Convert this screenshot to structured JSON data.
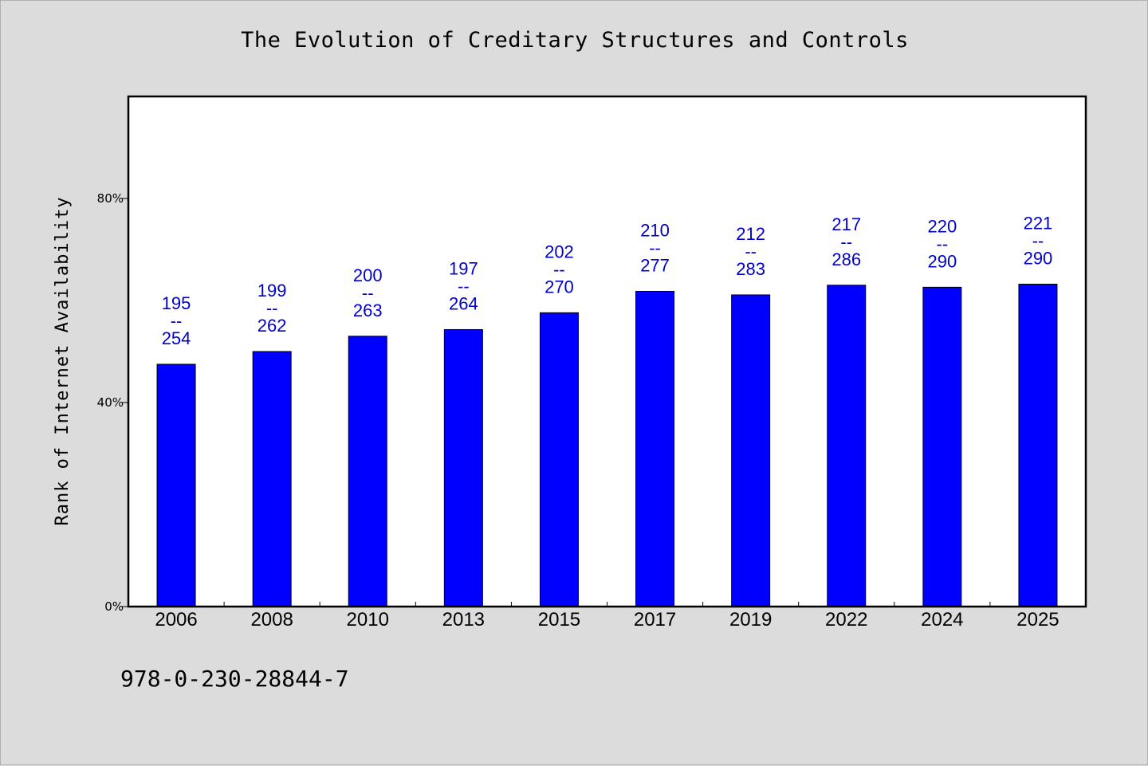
{
  "chart_data": {
    "type": "bar",
    "title": "The Evolution of Creditary Structures and Controls",
    "xlabel": "",
    "ylabel": "Rank of Internet Availability",
    "ylim": [
      0,
      100
    ],
    "yticks": [
      0,
      40,
      80
    ],
    "ytick_labels": [
      "0%",
      "40%",
      "80%"
    ],
    "grid": false,
    "categories": [
      "2006",
      "2008",
      "2010",
      "2013",
      "2015",
      "2017",
      "2019",
      "2022",
      "2024",
      "2025"
    ],
    "values": [
      47.5,
      50.0,
      53.0,
      54.3,
      57.6,
      61.8,
      61.1,
      63.0,
      62.6,
      63.2
    ],
    "bar_labels": [
      {
        "top": "195",
        "mid": "--",
        "bottom": "254"
      },
      {
        "top": "199",
        "mid": "--",
        "bottom": "262"
      },
      {
        "top": "200",
        "mid": "--",
        "bottom": "263"
      },
      {
        "top": "197",
        "mid": "--",
        "bottom": "264"
      },
      {
        "top": "202",
        "mid": "--",
        "bottom": "270"
      },
      {
        "top": "210",
        "mid": "--",
        "bottom": "277"
      },
      {
        "top": "212",
        "mid": "--",
        "bottom": "283"
      },
      {
        "top": "217",
        "mid": "--",
        "bottom": "286"
      },
      {
        "top": "220",
        "mid": "--",
        "bottom": "290"
      },
      {
        "top": "221",
        "mid": "--",
        "bottom": "290"
      }
    ],
    "bar_color": "#0000ff",
    "label_color": "#0000cc"
  },
  "footer": {
    "code": "978-0-230-28844-7"
  }
}
